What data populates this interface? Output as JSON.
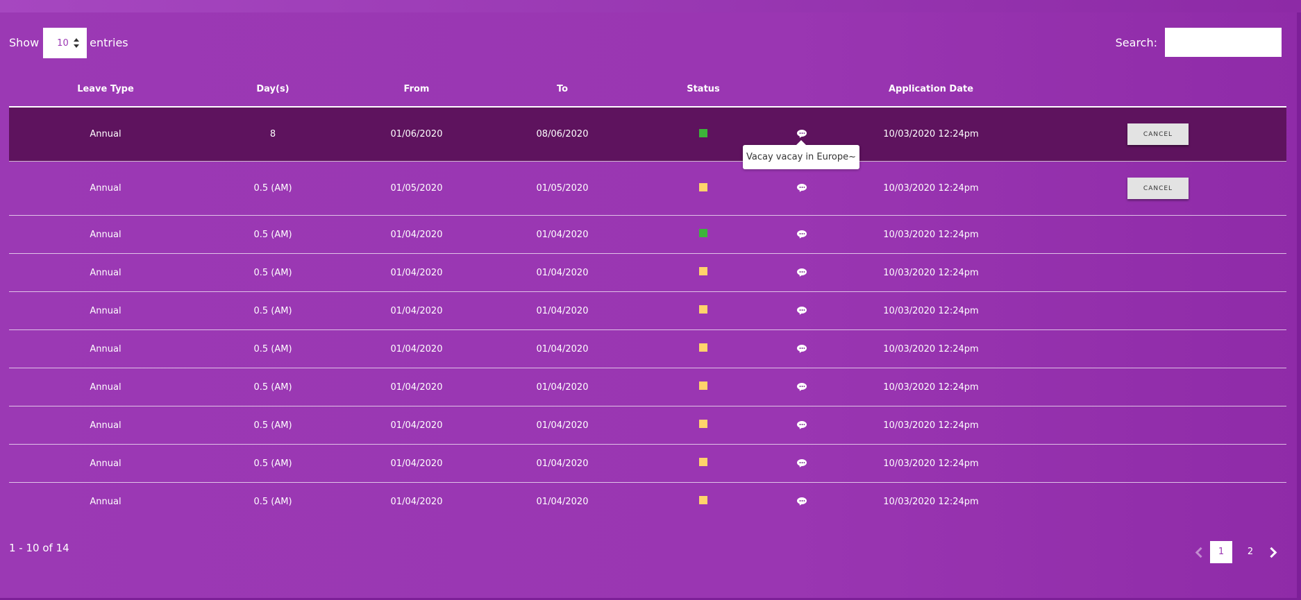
{
  "length_menu": {
    "show_label": "Show",
    "value": "10",
    "entries_label": "entries"
  },
  "search": {
    "label": "Search:",
    "value": ""
  },
  "columns": [
    "Leave Type",
    "Day(s)",
    "From",
    "To",
    "Status",
    "",
    "Application Date",
    ""
  ],
  "colors": {
    "approved": "#3db43a",
    "pending": "#ffd36b",
    "selected_row": "#5e135e",
    "background": "#9a36b2"
  },
  "rows": [
    {
      "type": "Annual",
      "days": "8",
      "from": "01/06/2020",
      "to": "08/06/2020",
      "status": "approved",
      "icon": "comment-icon",
      "applied": "10/03/2020 12:24pm",
      "action": "CANCEL"
    },
    {
      "type": "Annual",
      "days": "0.5 (AM)",
      "from": "01/05/2020",
      "to": "01/05/2020",
      "status": "pending",
      "icon": "comment-icon",
      "applied": "10/03/2020 12:24pm",
      "action": "CANCEL"
    },
    {
      "type": "Annual",
      "days": "0.5 (AM)",
      "from": "01/04/2020",
      "to": "01/04/2020",
      "status": "approved",
      "icon": "comment-icon",
      "applied": "10/03/2020 12:24pm",
      "action": ""
    },
    {
      "type": "Annual",
      "days": "0.5 (AM)",
      "from": "01/04/2020",
      "to": "01/04/2020",
      "status": "pending",
      "icon": "comment-icon",
      "applied": "10/03/2020 12:24pm",
      "action": ""
    },
    {
      "type": "Annual",
      "days": "0.5 (AM)",
      "from": "01/04/2020",
      "to": "01/04/2020",
      "status": "pending",
      "icon": "comment-icon",
      "applied": "10/03/2020 12:24pm",
      "action": ""
    },
    {
      "type": "Annual",
      "days": "0.5 (AM)",
      "from": "01/04/2020",
      "to": "01/04/2020",
      "status": "pending",
      "icon": "comment-icon",
      "applied": "10/03/2020 12:24pm",
      "action": ""
    },
    {
      "type": "Annual",
      "days": "0.5 (AM)",
      "from": "01/04/2020",
      "to": "01/04/2020",
      "status": "pending",
      "icon": "comment-icon",
      "applied": "10/03/2020 12:24pm",
      "action": ""
    },
    {
      "type": "Annual",
      "days": "0.5 (AM)",
      "from": "01/04/2020",
      "to": "01/04/2020",
      "status": "pending",
      "icon": "comment-icon",
      "applied": "10/03/2020 12:24pm",
      "action": ""
    },
    {
      "type": "Annual",
      "days": "0.5 (AM)",
      "from": "01/04/2020",
      "to": "01/04/2020",
      "status": "pending",
      "icon": "comment-icon",
      "applied": "10/03/2020 12:24pm",
      "action": ""
    },
    {
      "type": "Annual",
      "days": "0.5 (AM)",
      "from": "01/04/2020",
      "to": "01/04/2020",
      "status": "pending",
      "icon": "comment-icon",
      "applied": "10/03/2020 12:24pm",
      "action": ""
    }
  ],
  "tooltip": {
    "text": "Vacay vacay in Europe~"
  },
  "info": "1 - 10 of 14",
  "pagination": {
    "pages": [
      "1",
      "2"
    ],
    "current": "1"
  }
}
